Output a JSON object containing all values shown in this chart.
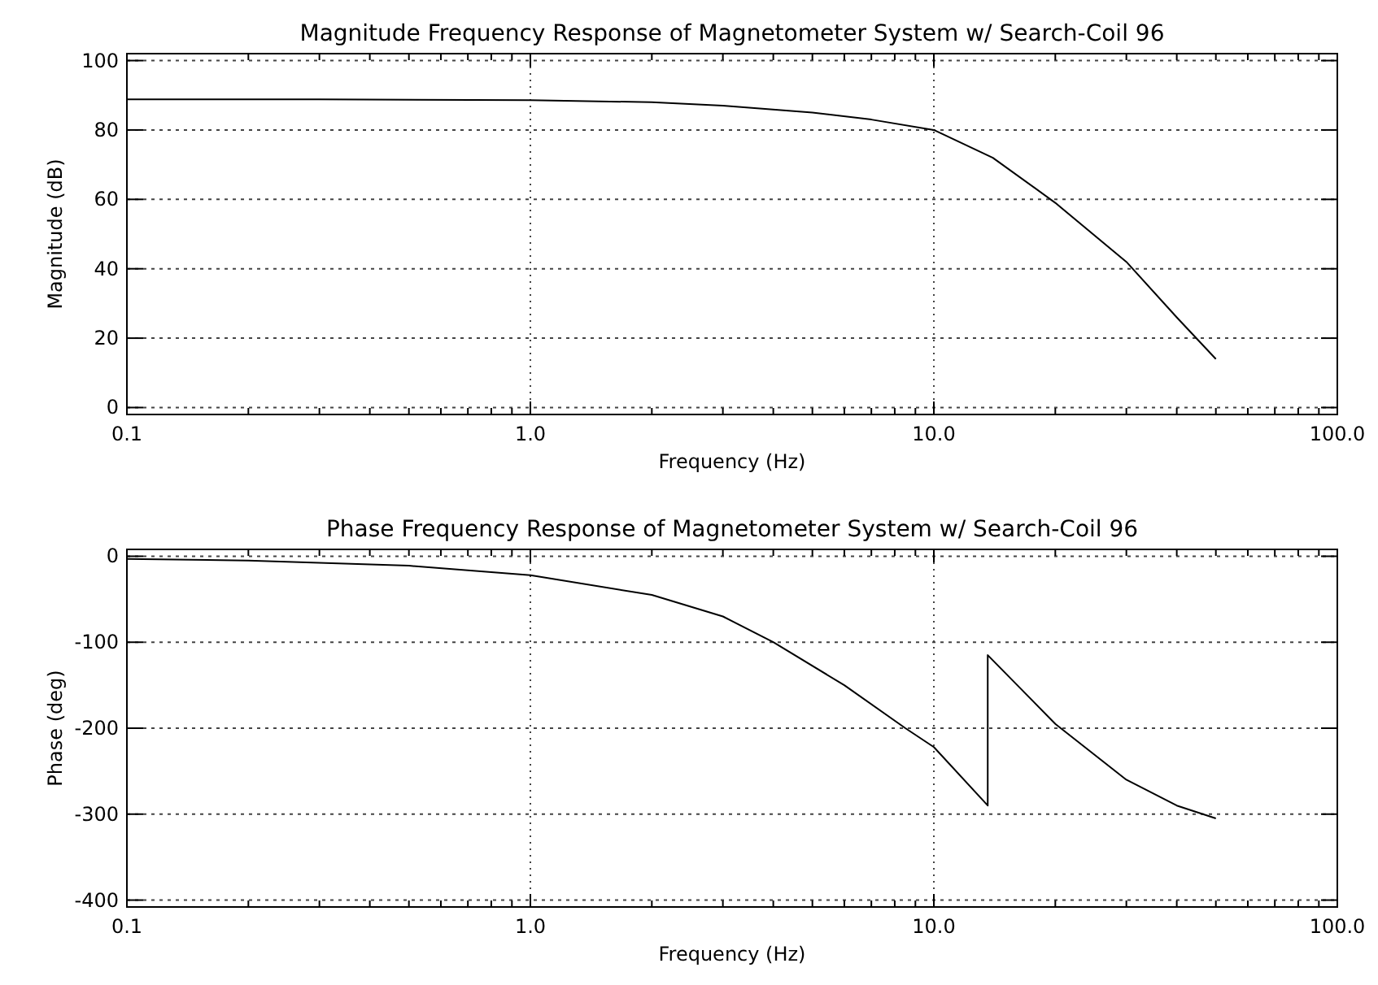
{
  "chart_data": [
    {
      "type": "line",
      "title": "Magnitude Frequency Response of Magnetometer System w/ Search-Coil 96",
      "xlabel": "Frequency (Hz)",
      "ylabel": "Magnitude (dB)",
      "log": "x",
      "grid": true,
      "line_style": "solid",
      "xlim": [
        0.1,
        100
      ],
      "xticks": [
        {
          "value": 0.1,
          "label": "0.1"
        },
        {
          "value": 1,
          "label": "1.0"
        },
        {
          "value": 10,
          "label": "10.0"
        },
        {
          "value": 100,
          "label": "100.0"
        }
      ],
      "ylim": [
        -2,
        102
      ],
      "yticks": [
        0,
        20,
        40,
        60,
        80,
        100
      ],
      "series": [
        {
          "color": "#000000",
          "x": [
            0.1,
            0.3,
            1,
            2,
            3,
            5,
            7,
            10,
            14,
            20,
            30,
            40,
            50
          ],
          "values": [
            88.8,
            88.8,
            88.6,
            88,
            87,
            85,
            83,
            80,
            72,
            59,
            42,
            26,
            14
          ]
        }
      ]
    },
    {
      "type": "line",
      "title": "Phase Frequency Response of Magnetometer System w/ Search-Coil 96",
      "xlabel": "Frequency (Hz)",
      "ylabel": "Phase (deg)",
      "log": "x",
      "grid": true,
      "line_style": "solid",
      "xlim": [
        0.1,
        100
      ],
      "xticks": [
        {
          "value": 0.1,
          "label": "0.1"
        },
        {
          "value": 1,
          "label": "1.0"
        },
        {
          "value": 10,
          "label": "10.0"
        },
        {
          "value": 100,
          "label": "100.0"
        }
      ],
      "ylim": [
        -408,
        8
      ],
      "yticks": [
        -400,
        -300,
        -200,
        -100,
        0
      ],
      "series": [
        {
          "color": "#000000",
          "x": [
            0.1,
            0.2,
            0.5,
            1,
            2,
            3,
            4,
            6,
            8.5,
            10,
            13.6,
            13.6,
            20,
            30,
            40,
            50
          ],
          "values": [
            -3,
            -5,
            -11,
            -22,
            -45,
            -70,
            -100,
            -150,
            -200,
            -222,
            -290,
            -115,
            -195,
            -260,
            -290,
            -305
          ]
        }
      ]
    }
  ]
}
